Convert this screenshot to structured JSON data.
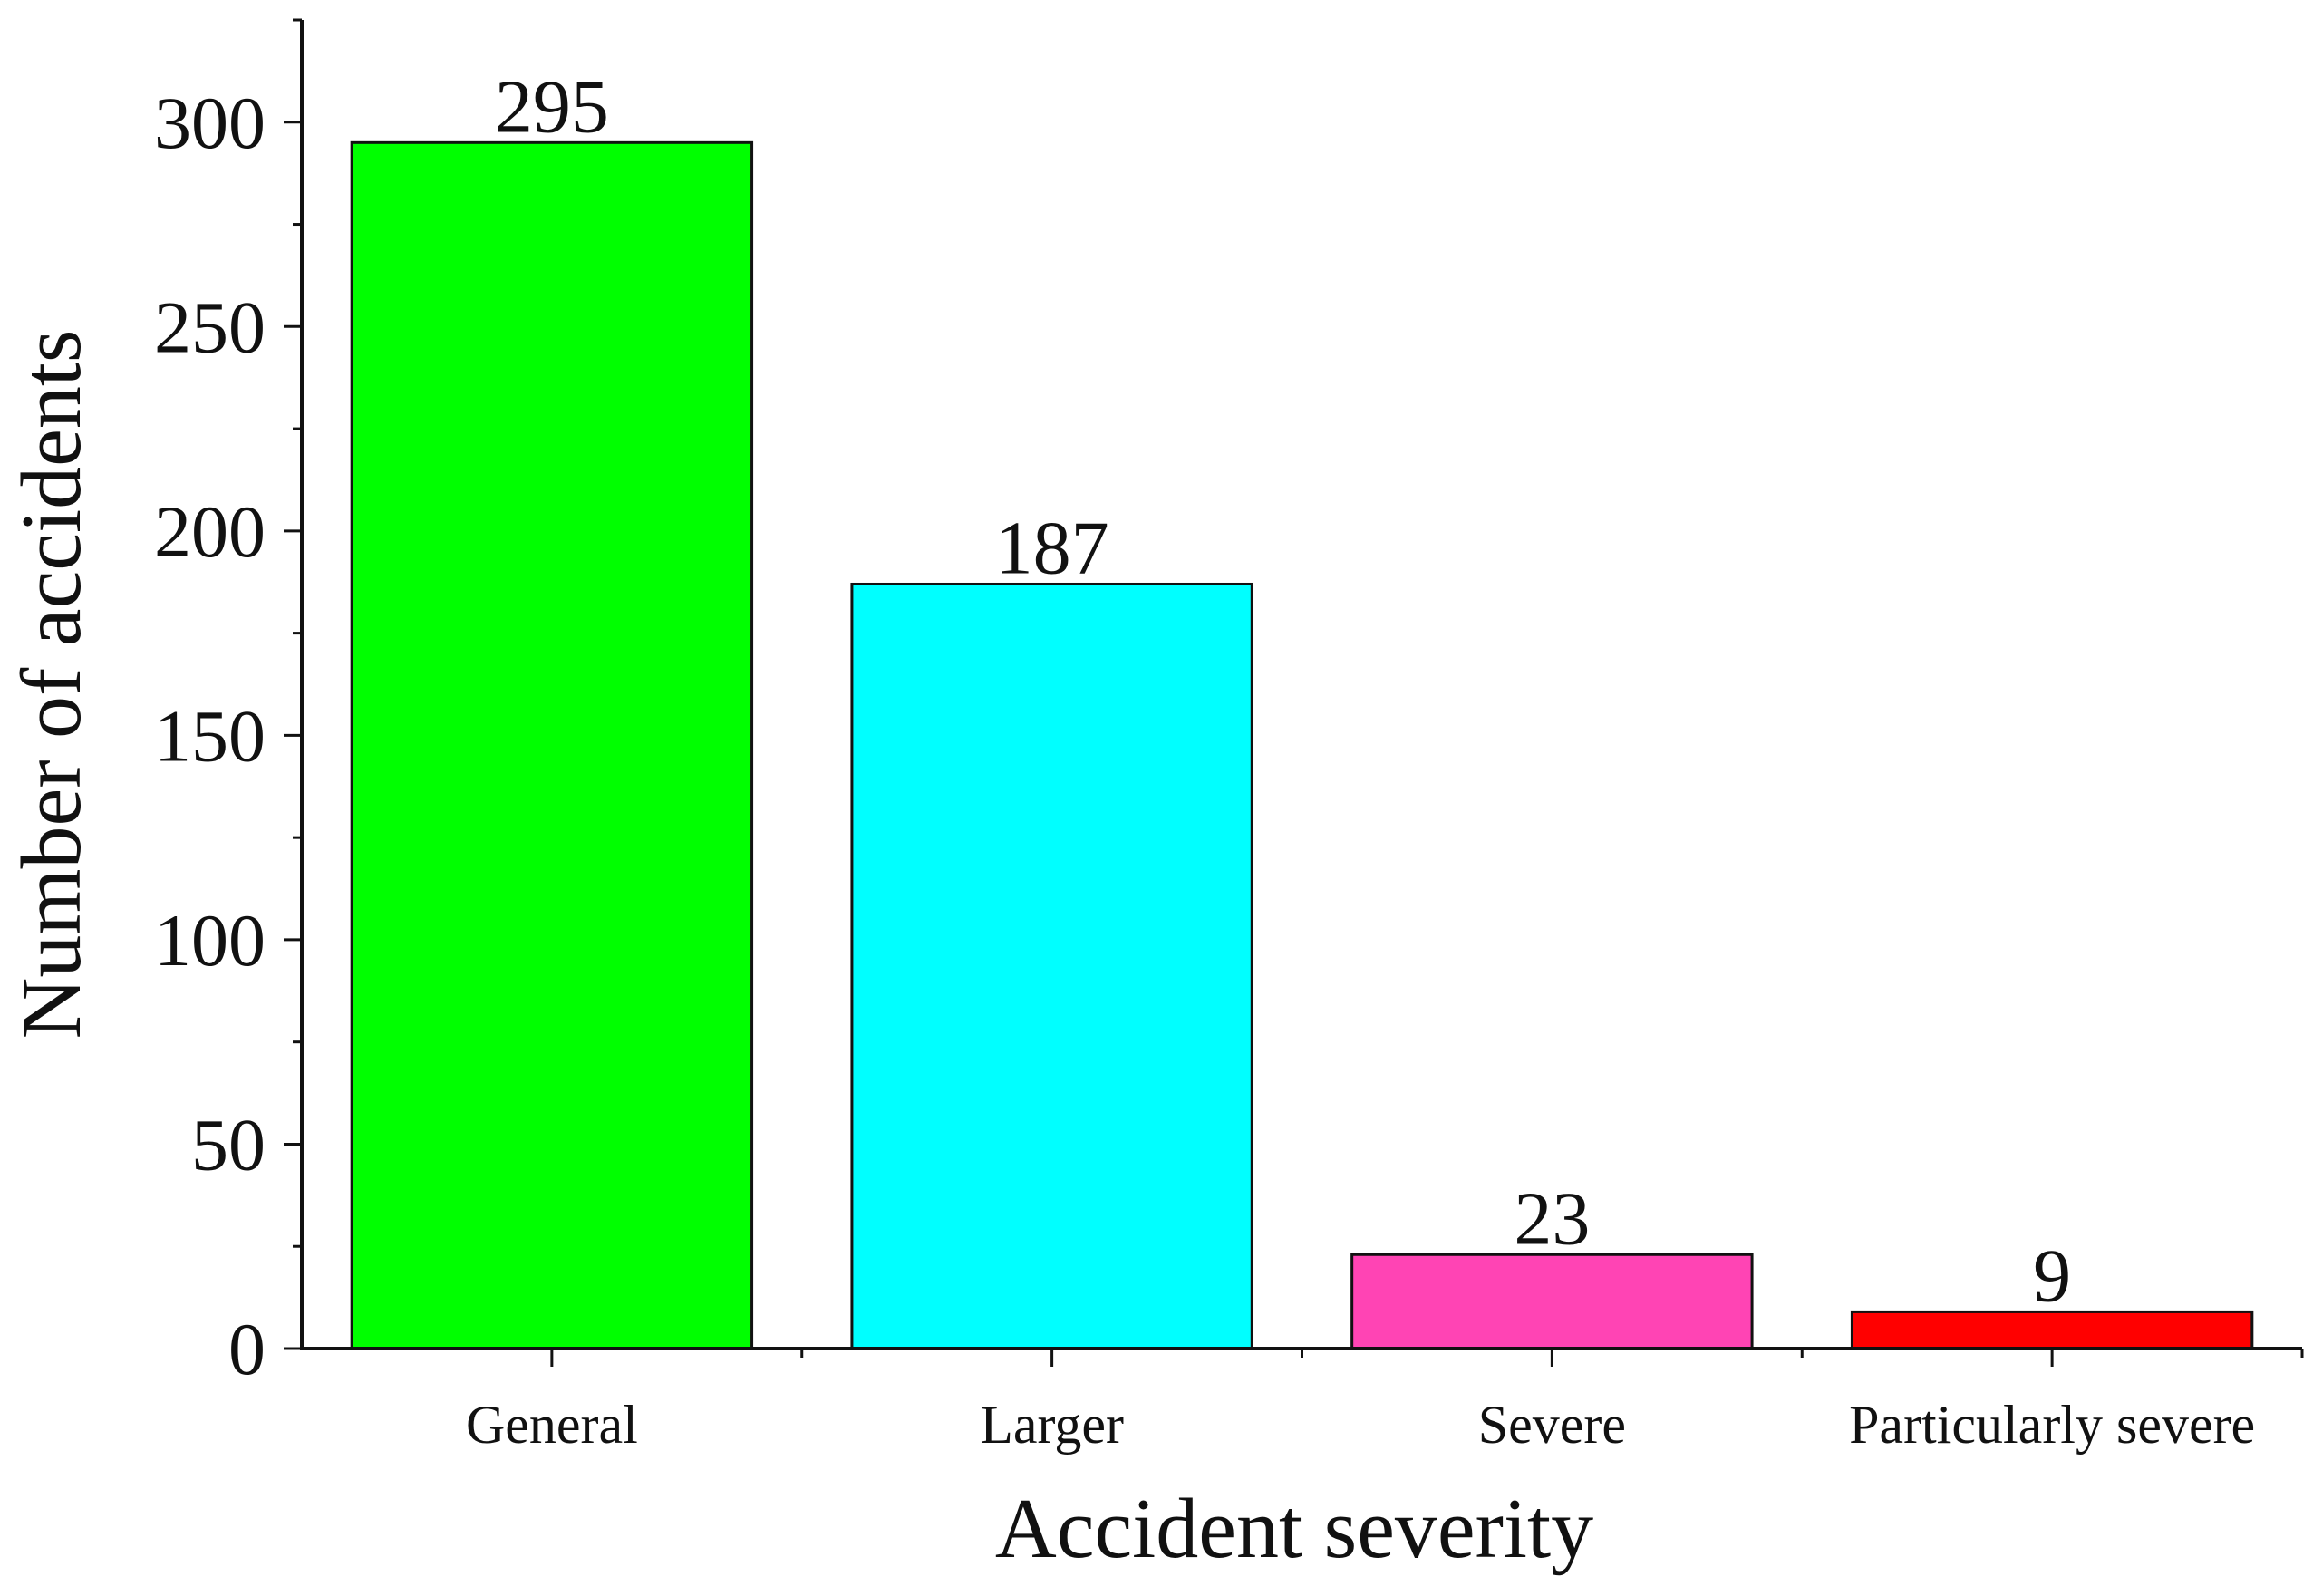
{
  "chart_data": {
    "type": "bar",
    "categories": [
      "General",
      "Larger",
      "Severe",
      "Particularly severe"
    ],
    "values": [
      295,
      187,
      23,
      9
    ],
    "data_labels": [
      "295",
      "187",
      "23",
      "9"
    ],
    "colors": [
      "#00ff00",
      "#00ffff",
      "#ff44b4",
      "#ff0000"
    ],
    "title": "",
    "xlabel": "Accident severity",
    "ylabel": "Number of accidents",
    "ylim": [
      0,
      325
    ],
    "yticks": [
      0,
      50,
      100,
      150,
      200,
      250,
      300
    ],
    "ytick_labels": [
      "0",
      "50",
      "100",
      "150",
      "200",
      "250",
      "300"
    ],
    "grid": false,
    "legend": "none"
  }
}
